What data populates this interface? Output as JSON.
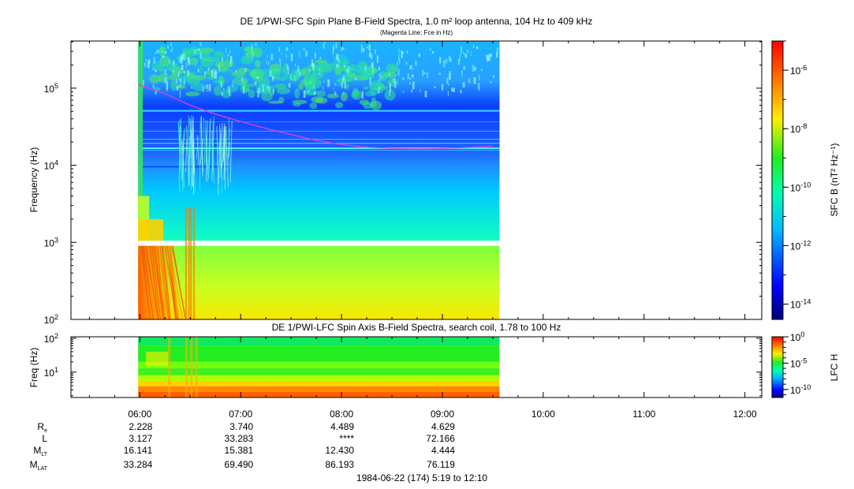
{
  "chart_data": [
    {
      "type": "heatmap",
      "title": "DE 1/PWI-SFC  Spin Plane B-Field Spectra, 1.0 m² loop antenna, 104 Hz to 409 kHz",
      "subtitle": "(Magenta Line: Fce in Hz)",
      "ylabel": "Frequency (Hz)",
      "yscale": "log",
      "ylim": [
        100,
        409000
      ],
      "y_ticks": [
        {
          "value": 100,
          "mantissa": "10",
          "exp": "2"
        },
        {
          "value": 1000,
          "mantissa": "10",
          "exp": "3"
        },
        {
          "value": 10000,
          "mantissa": "10",
          "exp": "4"
        },
        {
          "value": 100000,
          "mantissa": "10",
          "exp": "5"
        }
      ],
      "data_time_range_hours": [
        5.983,
        9.567
      ],
      "data_gap_hz": [
        900,
        1050
      ],
      "fce_line": {
        "color": "#e040e0",
        "time_hours": [
          5.983,
          6.25,
          6.5,
          6.75,
          7.0,
          7.25,
          7.5,
          7.75,
          8.0,
          8.25,
          8.5,
          8.75,
          9.0,
          9.25,
          9.5
        ],
        "freq_hz": [
          112000,
          85000,
          60000,
          46000,
          37000,
          30000,
          25000,
          21000,
          18500,
          17200,
          16500,
          16300,
          16500,
          17000,
          17800
        ]
      },
      "colorbar": {
        "label": "SFC B (nT² Hz⁻¹)",
        "scale": "log",
        "range": [
          3e-15,
          1e-05
        ],
        "ticks": [
          {
            "value": 1e-06,
            "mantissa": "10",
            "exp": "-6"
          },
          {
            "value": 1e-08,
            "mantissa": "10",
            "exp": "-8"
          },
          {
            "value": 1e-10,
            "mantissa": "10",
            "exp": "-10"
          },
          {
            "value": 1e-12,
            "mantissa": "10",
            "exp": "-12"
          },
          {
            "value": 1e-14,
            "mantissa": "10",
            "exp": "-14"
          }
        ]
      }
    },
    {
      "type": "heatmap",
      "title": "DE 1/PWI-LFC  Spin Axis B-Field Spectra, search coil, 1.78 to 100 Hz",
      "ylabel": "Freq (Hz)",
      "yscale": "log",
      "ylim": [
        1.78,
        110
      ],
      "y_ticks": [
        {
          "value": 10,
          "mantissa": "10",
          "exp": "1"
        },
        {
          "value": 100,
          "mantissa": "10",
          "exp": "2"
        }
      ],
      "data_time_range_hours": [
        5.983,
        9.567
      ],
      "colorbar": {
        "label": "LFC H",
        "scale": "log",
        "range": [
          3e-12,
          1
        ],
        "ticks": [
          {
            "value": 1,
            "mantissa": "10",
            "exp": "0"
          },
          {
            "value": 1e-05,
            "mantissa": "10",
            "exp": "-5"
          },
          {
            "value": 1e-10,
            "mantissa": "10",
            "exp": "-10"
          }
        ]
      }
    }
  ],
  "time_axis": {
    "range_hours": [
      5.317,
      12.167
    ],
    "ticks": [
      {
        "value": 6,
        "label": "06:00"
      },
      {
        "value": 7,
        "label": "07:00"
      },
      {
        "value": 8,
        "label": "08:00"
      },
      {
        "value": 9,
        "label": "09:00"
      },
      {
        "value": 10,
        "label": "10:00"
      },
      {
        "value": 11,
        "label": "11:00"
      },
      {
        "value": 12,
        "label": "12:00"
      }
    ]
  },
  "ephemeris": {
    "rows": [
      {
        "label": "R",
        "sub": "e",
        "values": [
          "2.228",
          "3.740",
          "4.489",
          "4.629"
        ]
      },
      {
        "label": "L",
        "sub": "",
        "values": [
          "3.127",
          "33.283",
          "****",
          "72.166"
        ]
      },
      {
        "label": "M",
        "sub": "LT",
        "values": [
          "16.141",
          "15.381",
          "12.430",
          "4.444"
        ]
      },
      {
        "label": "M",
        "sub": "LAT",
        "values": [
          "33.284",
          "69.490",
          "86.193",
          "76.119"
        ]
      }
    ]
  },
  "footer": "1984-06-22 (174) 5:19 to 12:10"
}
